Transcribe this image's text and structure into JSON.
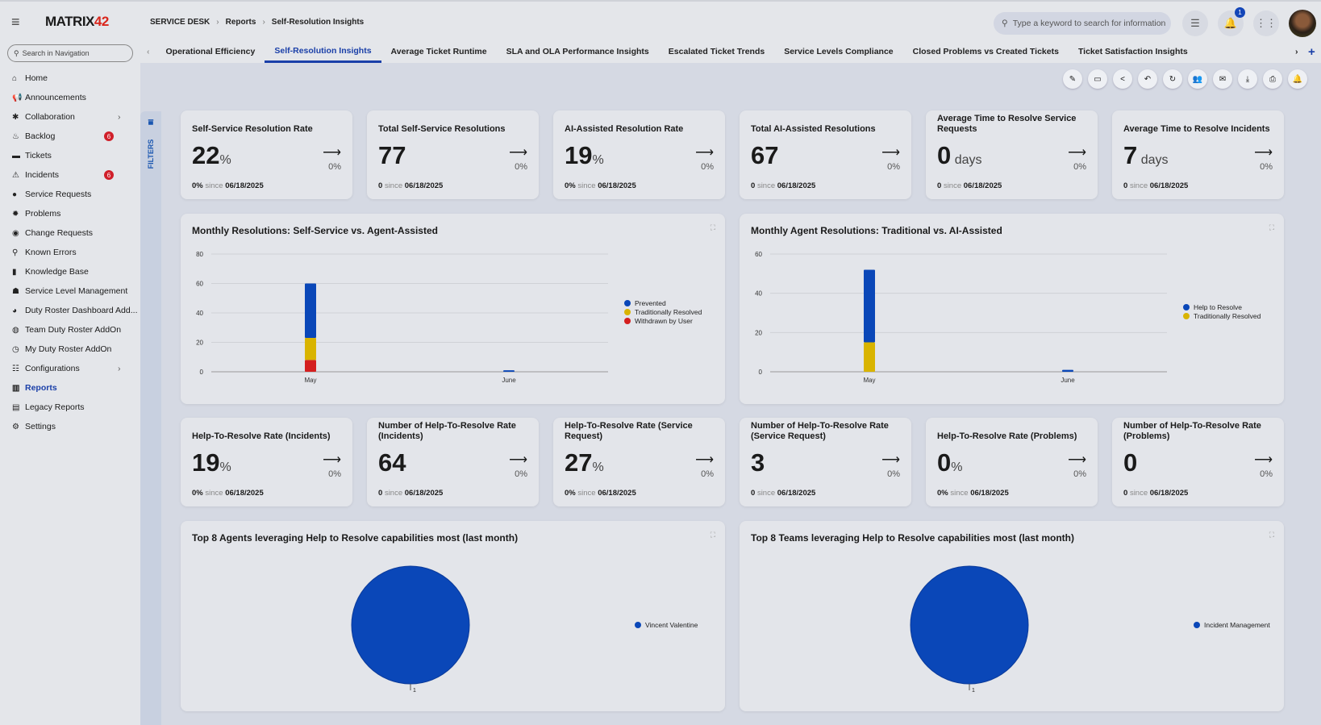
{
  "header": {
    "logo": "MATRIX42",
    "breadcrumb": [
      "SERVICE DESK",
      "Reports",
      "Self-Resolution Insights"
    ],
    "search_placeholder": "Type a keyword to search for information",
    "notification_count": "1"
  },
  "sidebar": {
    "search_placeholder": "Search in Navigation",
    "items": [
      {
        "label": "Home",
        "icon": "home-icon",
        "glyph": "⌂"
      },
      {
        "label": "Announcements",
        "icon": "megaphone-icon",
        "glyph": "📢"
      },
      {
        "label": "Collaboration",
        "icon": "people-icon",
        "glyph": "✱",
        "chevron": true
      },
      {
        "label": "Backlog",
        "icon": "fire-icon",
        "glyph": "♨",
        "badge": "6"
      },
      {
        "label": "Tickets",
        "icon": "ticket-icon",
        "glyph": "▬"
      },
      {
        "label": "Incidents",
        "icon": "siren-icon",
        "glyph": "⚠",
        "badge": "6"
      },
      {
        "label": "Service Requests",
        "icon": "request-icon",
        "glyph": "●"
      },
      {
        "label": "Problems",
        "icon": "bug-icon",
        "glyph": "✹"
      },
      {
        "label": "Change Requests",
        "icon": "change-icon",
        "glyph": "◉"
      },
      {
        "label": "Known Errors",
        "icon": "search-icon",
        "glyph": "⚲"
      },
      {
        "label": "Knowledge Base",
        "icon": "book-icon",
        "glyph": "▮"
      },
      {
        "label": "Service Level Management",
        "icon": "hand-icon",
        "glyph": "☗"
      },
      {
        "label": "Duty Roster Dashboard Add...",
        "icon": "pie-icon",
        "glyph": "◕"
      },
      {
        "label": "Team Duty Roster AddOn",
        "icon": "globe-icon",
        "glyph": "◍"
      },
      {
        "label": "My Duty Roster AddOn",
        "icon": "clock-icon",
        "glyph": "◷"
      },
      {
        "label": "Configurations",
        "icon": "sliders-icon",
        "glyph": "☷",
        "chevron": true
      },
      {
        "label": "Reports",
        "icon": "reports-icon",
        "glyph": "▥",
        "active": true
      },
      {
        "label": "Legacy Reports",
        "icon": "legacy-reports-icon",
        "glyph": "▤"
      },
      {
        "label": "Settings",
        "icon": "gear-icon",
        "glyph": "⚙"
      }
    ]
  },
  "tabs": [
    "Operational Efficiency",
    "Self-Resolution Insights",
    "Average Ticket Runtime",
    "SLA and OLA Performance Insights",
    "Escalated Ticket Trends",
    "Service Levels Compliance",
    "Closed Problems vs Created Tickets",
    "Ticket Satisfaction Insights"
  ],
  "active_tab": 1,
  "filters_label": "FILTERS",
  "kpis_top": [
    {
      "title": "Self-Service Resolution Rate",
      "value": "22",
      "unit": "%",
      "trend": "0%",
      "since_value": "0%",
      "since": "since",
      "date": "06/18/2025"
    },
    {
      "title": "Total Self-Service Resolutions",
      "value": "77",
      "unit": "",
      "trend": "0%",
      "since_value": "0",
      "since": "since",
      "date": "06/18/2025"
    },
    {
      "title": "AI-Assisted Resolution Rate",
      "value": "19",
      "unit": "%",
      "trend": "0%",
      "since_value": "0%",
      "since": "since",
      "date": "06/18/2025"
    },
    {
      "title": "Total AI-Assisted Resolutions",
      "value": "67",
      "unit": "",
      "trend": "0%",
      "since_value": "0",
      "since": "since",
      "date": "06/18/2025"
    },
    {
      "title": "Average Time to Resolve Service Requests",
      "value": "0",
      "unit": " days",
      "trend": "0%",
      "since_value": "0",
      "since": "since",
      "date": "06/18/2025"
    },
    {
      "title": "Average Time to Resolve Incidents",
      "value": "7",
      "unit": " days",
      "trend": "0%",
      "since_value": "0",
      "since": "since",
      "date": "06/18/2025"
    }
  ],
  "kpis_bottom": [
    {
      "title": "Help-To-Resolve Rate (Incidents)",
      "value": "19",
      "unit": "%",
      "trend": "0%",
      "since_value": "0%",
      "since": "since",
      "date": "06/18/2025"
    },
    {
      "title": "Number of Help-To-Resolve Rate (Incidents)",
      "value": "64",
      "unit": "",
      "trend": "0%",
      "since_value": "0",
      "since": "since",
      "date": "06/18/2025"
    },
    {
      "title": "Help-To-Resolve Rate (Service Request)",
      "value": "27",
      "unit": "%",
      "trend": "0%",
      "since_value": "0%",
      "since": "since",
      "date": "06/18/2025"
    },
    {
      "title": "Number of Help-To-Resolve Rate (Service Request)",
      "value": "3",
      "unit": "",
      "trend": "0%",
      "since_value": "0",
      "since": "since",
      "date": "06/18/2025"
    },
    {
      "title": "Help-To-Resolve Rate (Problems)",
      "value": "0",
      "unit": "%",
      "trend": "0%",
      "since_value": "0%",
      "since": "since",
      "date": "06/18/2025"
    },
    {
      "title": "Number of Help-To-Resolve Rate (Problems)",
      "value": "0",
      "unit": "",
      "trend": "0%",
      "since_value": "0",
      "since": "since",
      "date": "06/18/2025"
    }
  ],
  "chart_data": [
    {
      "type": "bar",
      "stacked": true,
      "title": "Monthly Resolutions: Self-Service vs. Agent-Assisted",
      "categories": [
        "May",
        "June"
      ],
      "ylim": [
        0,
        80
      ],
      "yticks": [
        0,
        20,
        40,
        60,
        80
      ],
      "grid": true,
      "legend": "right",
      "series": [
        {
          "name": "Withdrawn by User",
          "color": "#d41f1f",
          "values": [
            8,
            0
          ]
        },
        {
          "name": "Traditionally Resolved",
          "color": "#d9b400",
          "values": [
            15,
            0
          ]
        },
        {
          "name": "Prevented",
          "color": "#0a47b8",
          "values": [
            37,
            1
          ]
        }
      ]
    },
    {
      "type": "bar",
      "stacked": true,
      "title": "Monthly Agent Resolutions: Traditional vs. AI-Assisted",
      "categories": [
        "May",
        "June"
      ],
      "ylim": [
        0,
        60
      ],
      "yticks": [
        0,
        20,
        40,
        60
      ],
      "grid": true,
      "legend": "right",
      "series": [
        {
          "name": "Traditionally Resolved",
          "color": "#d9b400",
          "values": [
            15,
            0
          ]
        },
        {
          "name": "Help to Resolve",
          "color": "#0a47b8",
          "values": [
            37,
            1
          ]
        }
      ]
    },
    {
      "type": "pie",
      "title": "Top 8 Agents leveraging Help to Resolve capabilities most (last month)",
      "legend": "right",
      "slices": [
        {
          "name": "Vincent Valentine",
          "value": 1,
          "color": "#0a47b8"
        }
      ]
    },
    {
      "type": "pie",
      "title": "Top 8 Teams leveraging Help to Resolve capabilities most (last month)",
      "legend": "right",
      "slices": [
        {
          "name": "Incident Management",
          "value": 1,
          "color": "#0a47b8"
        }
      ]
    }
  ]
}
